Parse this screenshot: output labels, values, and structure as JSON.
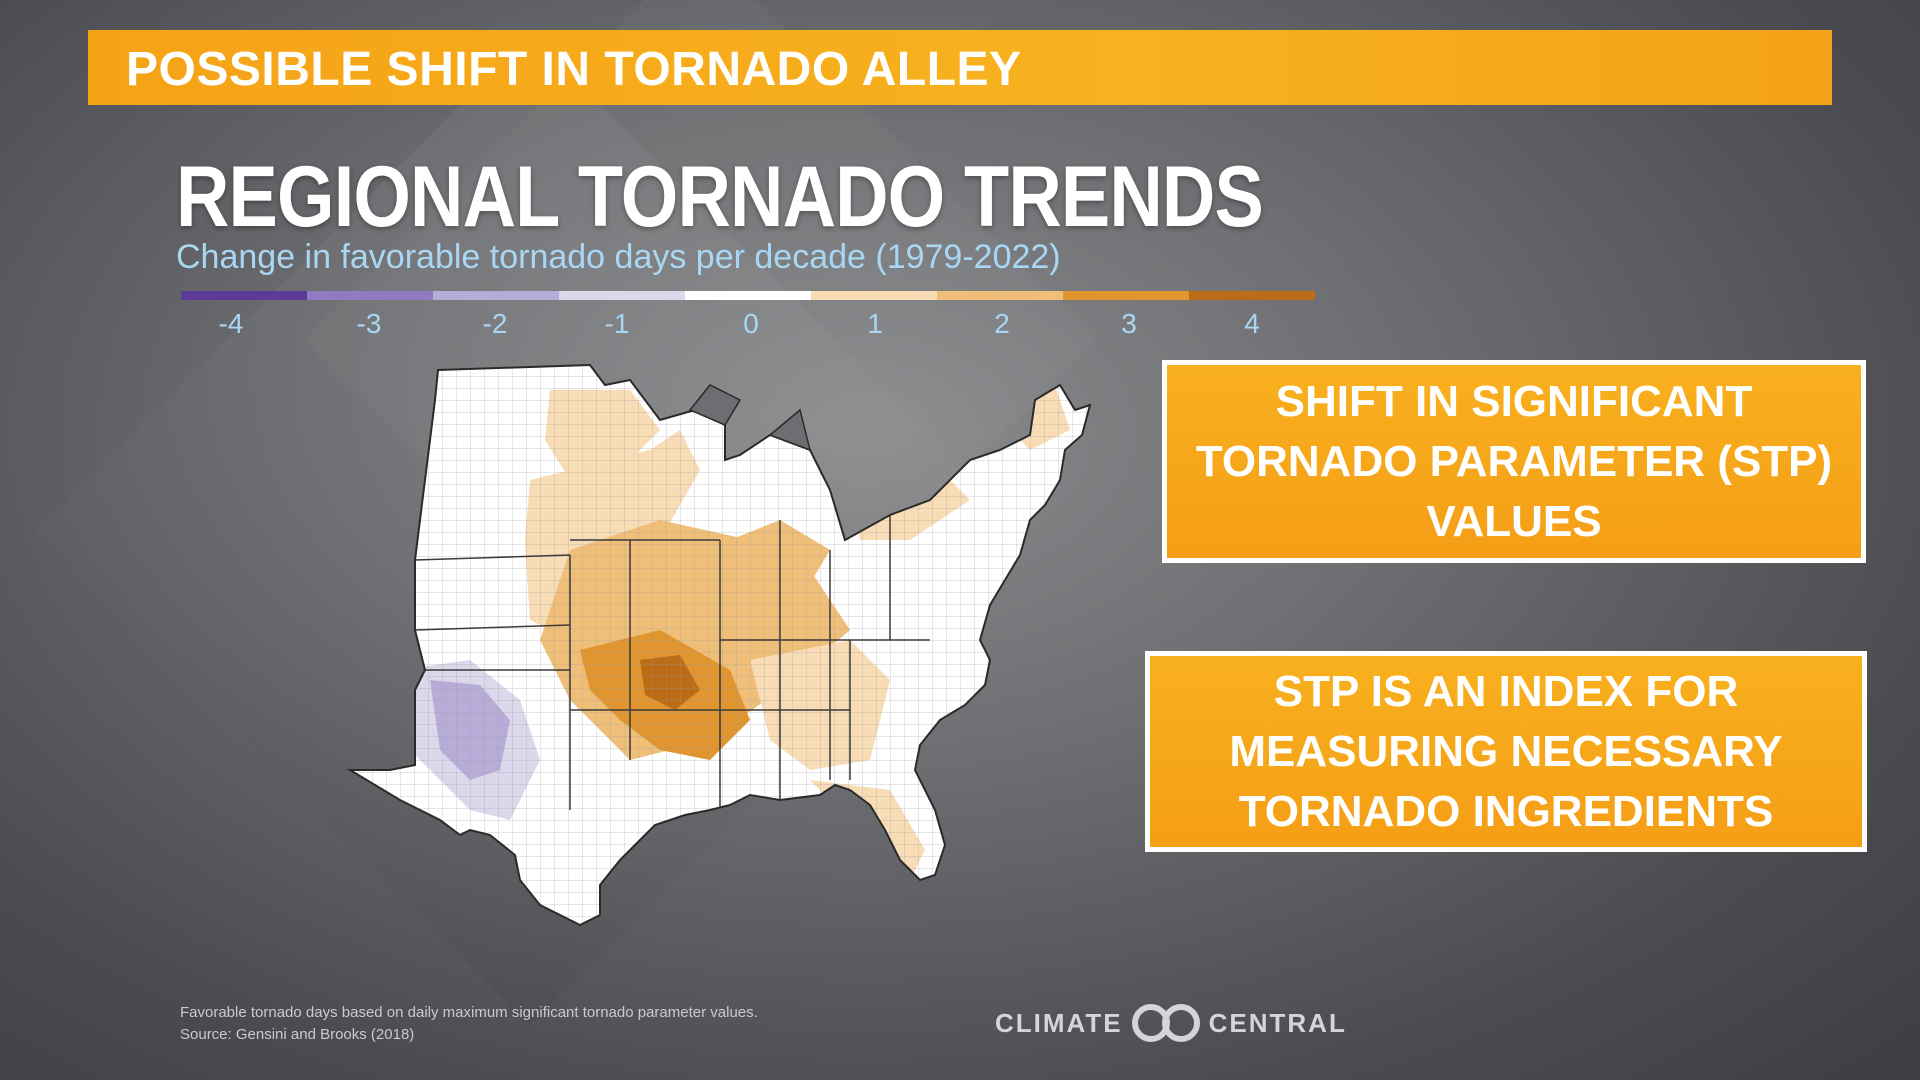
{
  "banner": {
    "title": "POSSIBLE SHIFT IN TORNADO ALLEY"
  },
  "map": {
    "title": "REGIONAL TORNADO TRENDS",
    "subtitle": "Change in favorable tornado days per decade (1979-2022)",
    "legend": {
      "colors": [
        "#5b3a99",
        "#8f7bc2",
        "#b7acd8",
        "#dcd8ec",
        "#ffffff",
        "#f7dcb5",
        "#efbf79",
        "#e0952f",
        "#bb6c17"
      ],
      "labels": [
        "-4",
        "-3",
        "-2",
        "-1",
        "0",
        "1",
        "2",
        "3",
        "4"
      ]
    }
  },
  "info_boxes": [
    {
      "text": "SHIFT IN SIGNIFICANT\nTORNADO PARAMETER (STP)\nVALUES"
    },
    {
      "text": "STP IS AN INDEX FOR\nMEASURING NECESSARY\nTORNADO INGREDIENTS"
    }
  ],
  "footnote": {
    "line1": "Favorable tornado days based on daily maximum significant tornado parameter values.",
    "line2": "Source: Gensini and Brooks (2018)"
  },
  "logo": {
    "left": "CLIMATE",
    "right": "CENTRAL"
  }
}
